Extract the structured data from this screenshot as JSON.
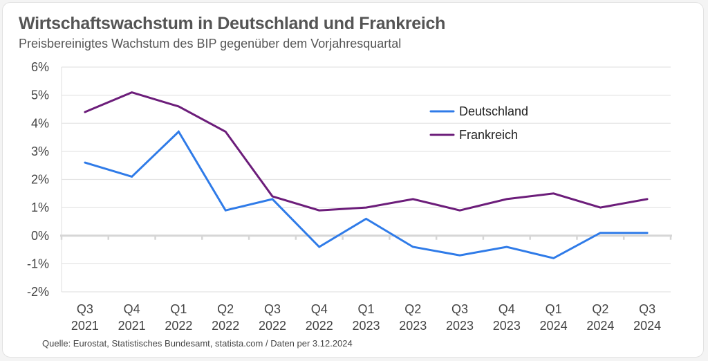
{
  "chart_data": {
    "type": "line",
    "title": "Wirtschaftswachstum in Deutschland und Frankreich",
    "subtitle": "Preisbereinigtes Wachstum des BIP gegenüber dem Vorjahresquartal",
    "source": "Quelle: Eurostat, Statistisches Bundesamt, statista.com /  Daten per 3.12.2024",
    "categories": [
      [
        "Q3",
        "2021"
      ],
      [
        "Q4",
        "2021"
      ],
      [
        "Q1",
        "2022"
      ],
      [
        "Q2",
        "2022"
      ],
      [
        "Q3",
        "2022"
      ],
      [
        "Q4",
        "2022"
      ],
      [
        "Q1",
        "2023"
      ],
      [
        "Q2",
        "2023"
      ],
      [
        "Q3",
        "2023"
      ],
      [
        "Q4",
        "2023"
      ],
      [
        "Q1",
        "2024"
      ],
      [
        "Q2",
        "2024"
      ],
      [
        "Q3",
        "2024"
      ]
    ],
    "series": [
      {
        "name": "Deutschland",
        "color": "#2f7be8",
        "values": [
          2.6,
          2.1,
          3.7,
          0.9,
          1.3,
          -0.4,
          0.6,
          -0.4,
          -0.7,
          -0.4,
          -0.8,
          0.1,
          0.1
        ]
      },
      {
        "name": "Frankreich",
        "color": "#6c1d7a",
        "values": [
          4.4,
          5.1,
          4.6,
          3.7,
          1.4,
          0.9,
          1.0,
          1.3,
          0.9,
          1.3,
          1.5,
          1.0,
          1.3
        ]
      }
    ],
    "yticks": [
      6,
      5,
      4,
      3,
      2,
      1,
      0,
      -1,
      -2
    ],
    "ytick_labels": [
      "6%",
      "5%",
      "4%",
      "3%",
      "2%",
      "1%",
      "0%",
      "-1%",
      "-2%"
    ],
    "ylim": [
      -2,
      6
    ],
    "xlabel": "",
    "ylabel": "",
    "grid": true,
    "legend_position": "top-right"
  }
}
